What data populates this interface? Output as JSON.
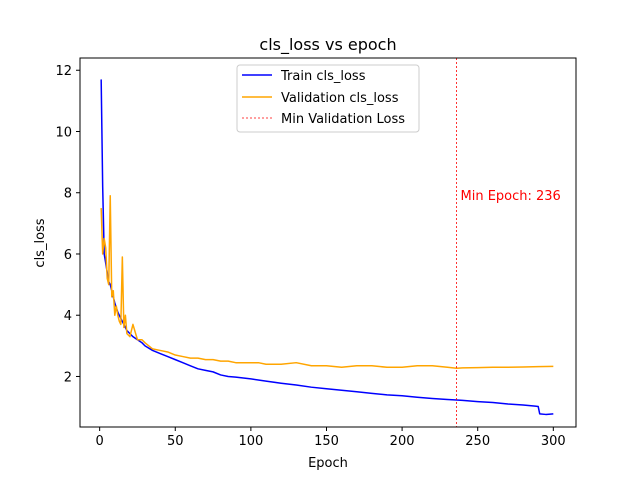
{
  "chart_data": {
    "type": "line",
    "title": "cls_loss vs epoch",
    "xlabel": "Epoch",
    "ylabel": "cls_loss",
    "xlim": [
      -13,
      315
    ],
    "ylim": [
      0.35,
      12.4
    ],
    "xticks": [
      0,
      50,
      100,
      150,
      200,
      250,
      300
    ],
    "yticks": [
      2,
      4,
      6,
      8,
      10,
      12
    ],
    "grid": false,
    "legend_position": "upper-center",
    "series": [
      {
        "name": "Train cls_loss",
        "color": "#0000ff",
        "x": [
          1,
          2,
          3,
          4,
          5,
          6,
          7,
          8,
          9,
          10,
          12,
          14,
          16,
          18,
          20,
          22,
          25,
          28,
          30,
          35,
          40,
          45,
          50,
          55,
          60,
          65,
          70,
          75,
          80,
          85,
          90,
          95,
          100,
          110,
          120,
          130,
          140,
          150,
          160,
          170,
          180,
          190,
          200,
          210,
          220,
          230,
          236,
          240,
          250,
          260,
          270,
          280,
          288,
          290,
          291,
          295,
          300
        ],
        "values": [
          11.7,
          8.2,
          6.0,
          5.7,
          5.4,
          5.1,
          5.0,
          4.8,
          4.6,
          4.4,
          4.1,
          3.9,
          3.7,
          3.5,
          3.4,
          3.3,
          3.2,
          3.1,
          3.0,
          2.85,
          2.75,
          2.65,
          2.55,
          2.45,
          2.35,
          2.25,
          2.2,
          2.15,
          2.05,
          2.0,
          1.98,
          1.95,
          1.92,
          1.85,
          1.78,
          1.72,
          1.65,
          1.6,
          1.55,
          1.5,
          1.45,
          1.4,
          1.37,
          1.32,
          1.28,
          1.25,
          1.23,
          1.22,
          1.18,
          1.15,
          1.1,
          1.07,
          1.03,
          1.02,
          0.78,
          0.76,
          0.78
        ]
      },
      {
        "name": "Validation cls_loss",
        "color": "#ffa500",
        "x": [
          1,
          2,
          3,
          4,
          5,
          6,
          7,
          8,
          9,
          10,
          11,
          12,
          13,
          14,
          15,
          16,
          17,
          18,
          20,
          22,
          25,
          28,
          30,
          35,
          40,
          45,
          50,
          55,
          60,
          65,
          70,
          75,
          80,
          85,
          90,
          95,
          100,
          105,
          110,
          115,
          120,
          130,
          140,
          150,
          160,
          170,
          180,
          190,
          200,
          210,
          220,
          230,
          236,
          240,
          250,
          260,
          270,
          280,
          290,
          300
        ],
        "values": [
          7.5,
          6.0,
          6.5,
          6.2,
          5.2,
          5.0,
          7.9,
          4.6,
          4.8,
          4.0,
          4.3,
          4.0,
          3.8,
          3.7,
          5.9,
          3.6,
          4.0,
          3.4,
          3.3,
          3.7,
          3.2,
          3.2,
          3.1,
          2.9,
          2.85,
          2.8,
          2.7,
          2.65,
          2.6,
          2.6,
          2.55,
          2.55,
          2.5,
          2.5,
          2.45,
          2.45,
          2.45,
          2.45,
          2.4,
          2.4,
          2.4,
          2.45,
          2.35,
          2.35,
          2.3,
          2.35,
          2.35,
          2.3,
          2.3,
          2.35,
          2.35,
          2.3,
          2.27,
          2.28,
          2.29,
          2.3,
          2.3,
          2.31,
          2.32,
          2.33
        ]
      }
    ],
    "vline": {
      "name": "Min Validation Loss",
      "x": 236,
      "color": "#ff0000",
      "style": "dashed",
      "annotation": "Min Epoch: 236",
      "annotation_y": 7.9
    }
  }
}
